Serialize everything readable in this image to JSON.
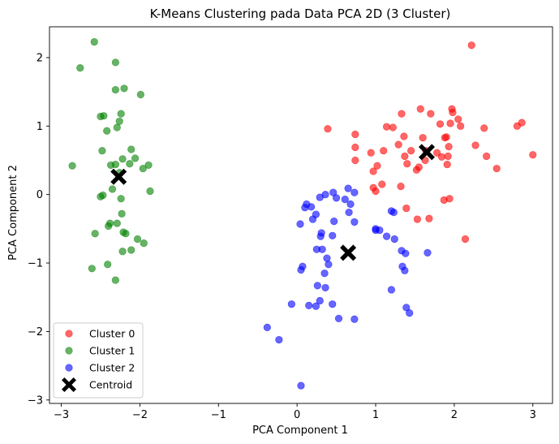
{
  "chart_data": {
    "type": "scatter",
    "title": "K-Means Clustering pada Data PCA 2D (3 Cluster)",
    "xlabel": "PCA Component 1",
    "ylabel": "PCA Component 2",
    "xlim": [
      -3.15,
      3.25
    ],
    "ylim": [
      -3.05,
      2.45
    ],
    "xticks": [
      -3,
      -2,
      -1,
      0,
      1,
      2,
      3
    ],
    "yticks": [
      -3,
      -2,
      -1,
      0,
      1,
      2
    ],
    "grid": false,
    "legend_position": "lower-left",
    "series": [
      {
        "name": "Cluster 0",
        "color": "#ff0000",
        "alpha": 0.6,
        "points": [
          [
            0.39,
            0.96
          ],
          [
            0.74,
            0.88
          ],
          [
            0.74,
            0.69
          ],
          [
            0.74,
            0.5
          ],
          [
            0.94,
            0.61
          ],
          [
            1.02,
            0.42
          ],
          [
            0.97,
            0.34
          ],
          [
            0.97,
            0.1
          ],
          [
            1.0,
            0.05
          ],
          [
            1.08,
            0.15
          ],
          [
            1.1,
            0.64
          ],
          [
            1.14,
            0.99
          ],
          [
            1.22,
            0.98
          ],
          [
            1.29,
            0.73
          ],
          [
            1.33,
            1.18
          ],
          [
            1.36,
            0.85
          ],
          [
            1.37,
            0.56
          ],
          [
            1.4,
            0.45
          ],
          [
            1.45,
            0.64
          ],
          [
            1.52,
            0.36
          ],
          [
            1.55,
            0.4
          ],
          [
            1.57,
            1.25
          ],
          [
            1.6,
            0.83
          ],
          [
            1.64,
            0.64
          ],
          [
            1.7,
            1.18
          ],
          [
            1.78,
            0.61
          ],
          [
            1.82,
            1.03
          ],
          [
            1.9,
            0.84
          ],
          [
            1.92,
            0.56
          ],
          [
            1.93,
            0.7
          ],
          [
            1.97,
            1.25
          ],
          [
            1.98,
            1.2
          ],
          [
            2.05,
            1.1
          ],
          [
            2.08,
            1.0
          ],
          [
            1.95,
            1.04
          ],
          [
            1.88,
            0.83
          ],
          [
            2.22,
            2.18
          ],
          [
            2.27,
            0.72
          ],
          [
            2.38,
            0.97
          ],
          [
            2.41,
            0.56
          ],
          [
            2.54,
            0.38
          ],
          [
            2.8,
            1.0
          ],
          [
            2.86,
            1.05
          ],
          [
            3.0,
            0.58
          ],
          [
            1.32,
            0.12
          ],
          [
            1.39,
            -0.2
          ],
          [
            1.53,
            -0.36
          ],
          [
            1.68,
            -0.35
          ],
          [
            1.87,
            -0.08
          ],
          [
            1.94,
            -0.06
          ],
          [
            2.14,
            -0.65
          ],
          [
            1.91,
            0.44
          ],
          [
            1.84,
            0.55
          ],
          [
            1.63,
            0.5
          ]
        ]
      },
      {
        "name": "Cluster 1",
        "color": "#008000",
        "alpha": 0.6,
        "points": [
          [
            -2.58,
            2.23
          ],
          [
            -2.76,
            1.85
          ],
          [
            -2.31,
            1.93
          ],
          [
            -2.31,
            1.53
          ],
          [
            -2.2,
            1.55
          ],
          [
            -1.99,
            1.46
          ],
          [
            -2.5,
            1.14
          ],
          [
            -2.46,
            1.15
          ],
          [
            -2.24,
            1.18
          ],
          [
            -2.26,
            1.07
          ],
          [
            -2.29,
            0.98
          ],
          [
            -2.42,
            0.93
          ],
          [
            -2.48,
            0.64
          ],
          [
            -2.11,
            0.66
          ],
          [
            -2.06,
            0.53
          ],
          [
            -2.22,
            0.52
          ],
          [
            -2.37,
            0.43
          ],
          [
            -2.13,
            0.45
          ],
          [
            -2.31,
            0.44
          ],
          [
            -1.96,
            0.38
          ],
          [
            -1.89,
            0.43
          ],
          [
            -2.86,
            0.42
          ],
          [
            -2.35,
            0.08
          ],
          [
            -2.47,
            -0.01
          ],
          [
            -2.5,
            -0.03
          ],
          [
            -2.24,
            -0.06
          ],
          [
            -1.87,
            0.05
          ],
          [
            -2.23,
            -0.28
          ],
          [
            -2.38,
            -0.42
          ],
          [
            -2.29,
            -0.42
          ],
          [
            -2.57,
            -0.57
          ],
          [
            -2.21,
            -0.55
          ],
          [
            -2.18,
            -0.57
          ],
          [
            -2.03,
            -0.65
          ],
          [
            -1.95,
            -0.71
          ],
          [
            -2.22,
            -0.83
          ],
          [
            -2.11,
            -0.81
          ],
          [
            -2.61,
            -1.08
          ],
          [
            -2.41,
            -1.02
          ],
          [
            -2.31,
            -1.25
          ],
          [
            -2.26,
            0.32
          ],
          [
            -2.4,
            -0.46
          ]
        ]
      },
      {
        "name": "Cluster 2",
        "color": "#0000ff",
        "alpha": 0.6,
        "points": [
          [
            0.65,
            0.09
          ],
          [
            0.46,
            0.03
          ],
          [
            0.5,
            -0.05
          ],
          [
            0.73,
            0.03
          ],
          [
            0.68,
            -0.14
          ],
          [
            0.66,
            -0.26
          ],
          [
            0.61,
            -0.07
          ],
          [
            0.73,
            -0.4
          ],
          [
            0.47,
            -0.39
          ],
          [
            0.36,
            0.0
          ],
          [
            0.29,
            -0.04
          ],
          [
            0.18,
            -0.18
          ],
          [
            0.1,
            -0.19
          ],
          [
            0.12,
            -0.14
          ],
          [
            0.24,
            -0.29
          ],
          [
            0.2,
            -0.36
          ],
          [
            0.04,
            -0.43
          ],
          [
            0.3,
            -0.61
          ],
          [
            0.31,
            -0.56
          ],
          [
            0.45,
            -0.6
          ],
          [
            0.25,
            -0.8
          ],
          [
            0.32,
            -0.8
          ],
          [
            0.38,
            -0.93
          ],
          [
            0.4,
            -1.02
          ],
          [
            0.07,
            -1.05
          ],
          [
            0.05,
            -1.1
          ],
          [
            0.35,
            -1.15
          ],
          [
            0.26,
            -1.33
          ],
          [
            0.36,
            -1.36
          ],
          [
            0.29,
            -1.55
          ],
          [
            0.15,
            -1.62
          ],
          [
            0.24,
            -1.63
          ],
          [
            0.45,
            -1.6
          ],
          [
            -0.07,
            -1.6
          ],
          [
            -0.38,
            -1.94
          ],
          [
            -0.23,
            -2.12
          ],
          [
            0.05,
            -2.79
          ],
          [
            0.53,
            -1.81
          ],
          [
            0.73,
            -1.82
          ],
          [
            1.0,
            -0.5
          ],
          [
            1.05,
            -0.52
          ],
          [
            1.14,
            -0.61
          ],
          [
            1.2,
            -0.24
          ],
          [
            1.23,
            -0.26
          ],
          [
            1.24,
            -0.65
          ],
          [
            1.33,
            -0.82
          ],
          [
            1.34,
            -1.05
          ],
          [
            1.37,
            -1.11
          ],
          [
            1.38,
            -0.86
          ],
          [
            1.2,
            -1.39
          ],
          [
            1.39,
            -1.65
          ],
          [
            1.43,
            -1.73
          ],
          [
            1.66,
            -0.85
          ],
          [
            1.0,
            -0.52
          ]
        ]
      }
    ],
    "centroids": {
      "name": "Centroid",
      "color": "#000000",
      "marker": "X",
      "points": [
        [
          1.65,
          0.62
        ],
        [
          -2.27,
          0.26
        ],
        [
          0.65,
          -0.85
        ]
      ]
    }
  }
}
